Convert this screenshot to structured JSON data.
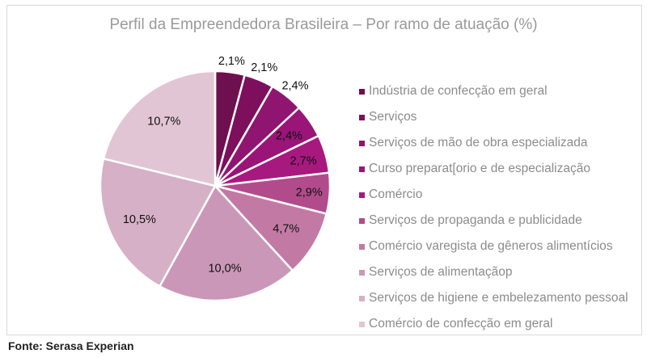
{
  "chart_data": {
    "type": "pie",
    "title": "Perfil da Empreendedora Brasileira – Por ramo de atuação (%)",
    "categories": [
      "Indústria de confecção em geral",
      "Serviços",
      "Serviços de mão de obra especializada",
      "Curso preparat[orio e de especialização",
      "Comércio",
      "Serviços de propaganda e publicidade",
      "Comércio varegista de gêneros alimentícios",
      "Serviços de alimentaçãop",
      "Serviços de higiene e embelezamento pessoal",
      "Comércio de confecção em geral"
    ],
    "values": [
      2.1,
      2.1,
      2.4,
      2.4,
      2.7,
      2.9,
      4.7,
      10.0,
      10.5,
      10.7
    ],
    "data_labels": [
      "2,1%",
      "2,1%",
      "2,4%",
      "2,4%",
      "2,7%",
      "2,9%",
      "4,7%",
      "10,0%",
      "10,5%",
      "10,7%"
    ],
    "colors": [
      "#6e0f4f",
      "#7d0f5d",
      "#8f1570",
      "#9a1577",
      "#a8197f",
      "#b24b8c",
      "#c27aa5",
      "#cb97b8",
      "#d6b0c6",
      "#e2c5d4"
    ],
    "legend_position": "right"
  },
  "source": "Fonte: Serasa Experian"
}
